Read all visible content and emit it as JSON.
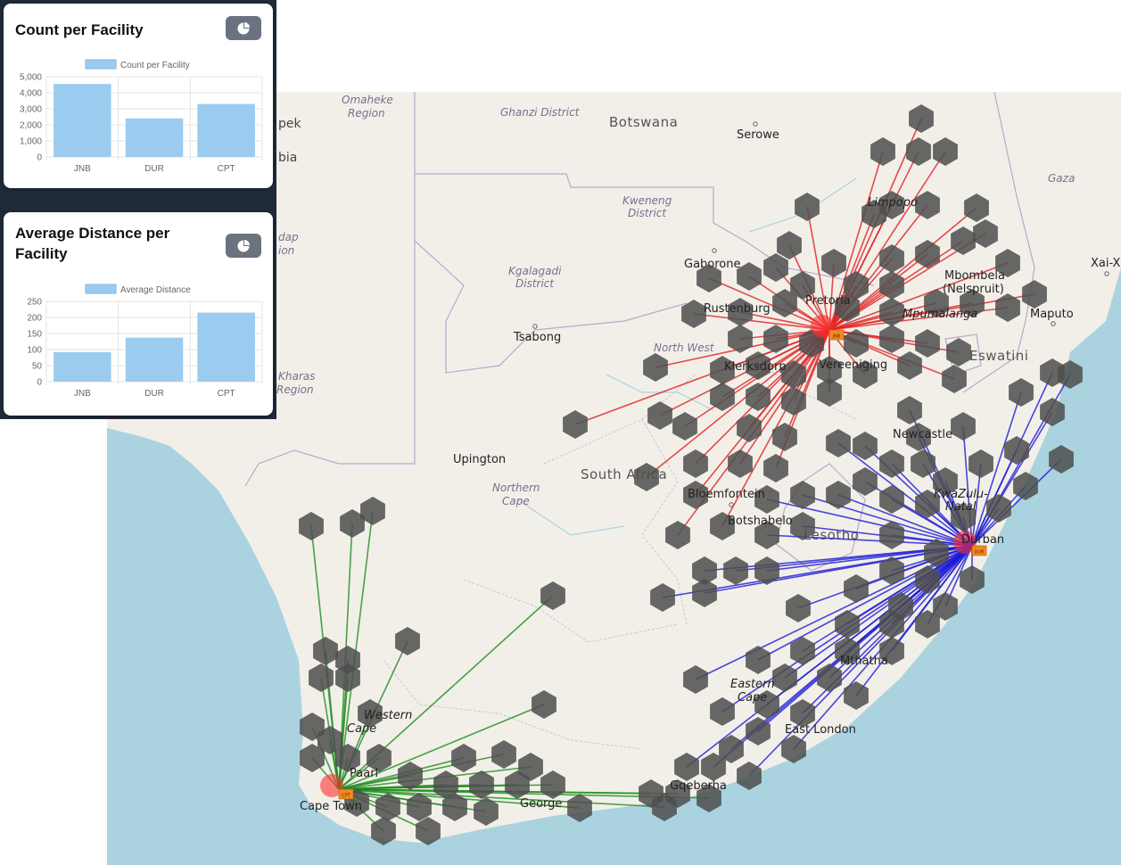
{
  "colors": {
    "land": "#f2efe9",
    "sea": "#aad3df",
    "hex": "#4d4d4d",
    "jnb_lines": "#e02020",
    "dur_lines": "#1a1ad6",
    "cpt_lines": "#1e8c1e",
    "bar": "#9ccbf0",
    "panel": "#1f2937"
  },
  "panels": [
    {
      "title": "Count per Facility",
      "button_icon": "pie-chart-icon",
      "chart_data": {
        "type": "bar",
        "title": "Count per Facility",
        "legend": "Count per Facility",
        "legend_position": "top",
        "categories": [
          "JNB",
          "DUR",
          "CPT"
        ],
        "values": [
          4550,
          2400,
          3300
        ],
        "ylim": [
          0,
          5000
        ],
        "yticks": [
          "5,000",
          "4,000",
          "3,000",
          "2,000",
          "1,000",
          "0"
        ],
        "grid": true
      }
    },
    {
      "title": "Average Distance per Facility",
      "button_icon": "pie-chart-icon",
      "chart_data": {
        "type": "bar",
        "title": "Average Distance per Facility",
        "legend": "Average Distance",
        "legend_position": "top",
        "categories": [
          "JNB",
          "DUR",
          "CPT"
        ],
        "values": [
          92,
          137,
          215
        ],
        "ylim": [
          0,
          250
        ],
        "yticks": [
          "250",
          "200",
          "150",
          "100",
          "50",
          "0"
        ],
        "grid": true
      }
    }
  ],
  "map": {
    "countries": [
      "Botswana",
      "South Africa",
      "Lesotho",
      "Eswatini"
    ],
    "regions": [
      "Omaheke Region",
      "Ghanzi District",
      "Kweneng District",
      "Kgalagadi District",
      "Northern Cape",
      "Eastern Cape",
      "Western Cape",
      "Limpopo",
      "Mpumalanga",
      "KwaZulu-Natal",
      "Gaza",
      "Kharas Region"
    ],
    "cities": [
      "Serowe",
      "Gaborone",
      "Tsabong",
      "Upington",
      "Rustenburg",
      "Pretoria",
      "Klerksdorp",
      "Vereeniging",
      "Mbombela (Nelspruit)",
      "Maputo",
      "Xai-Xai",
      "Newcastle",
      "Bloemfontein",
      "Botshabelo",
      "Durban",
      "Mthatha",
      "East London",
      "Gqeberha",
      "George",
      "Paarl",
      "Cape Town"
    ],
    "fragments": [
      "pek",
      "bia",
      "dap",
      "ion"
    ],
    "facilities": [
      {
        "code": "JNB",
        "badge": "JNB"
      },
      {
        "code": "DUR",
        "badge": "DUR"
      },
      {
        "code": "CPT",
        "badge": "CPT"
      }
    ]
  }
}
